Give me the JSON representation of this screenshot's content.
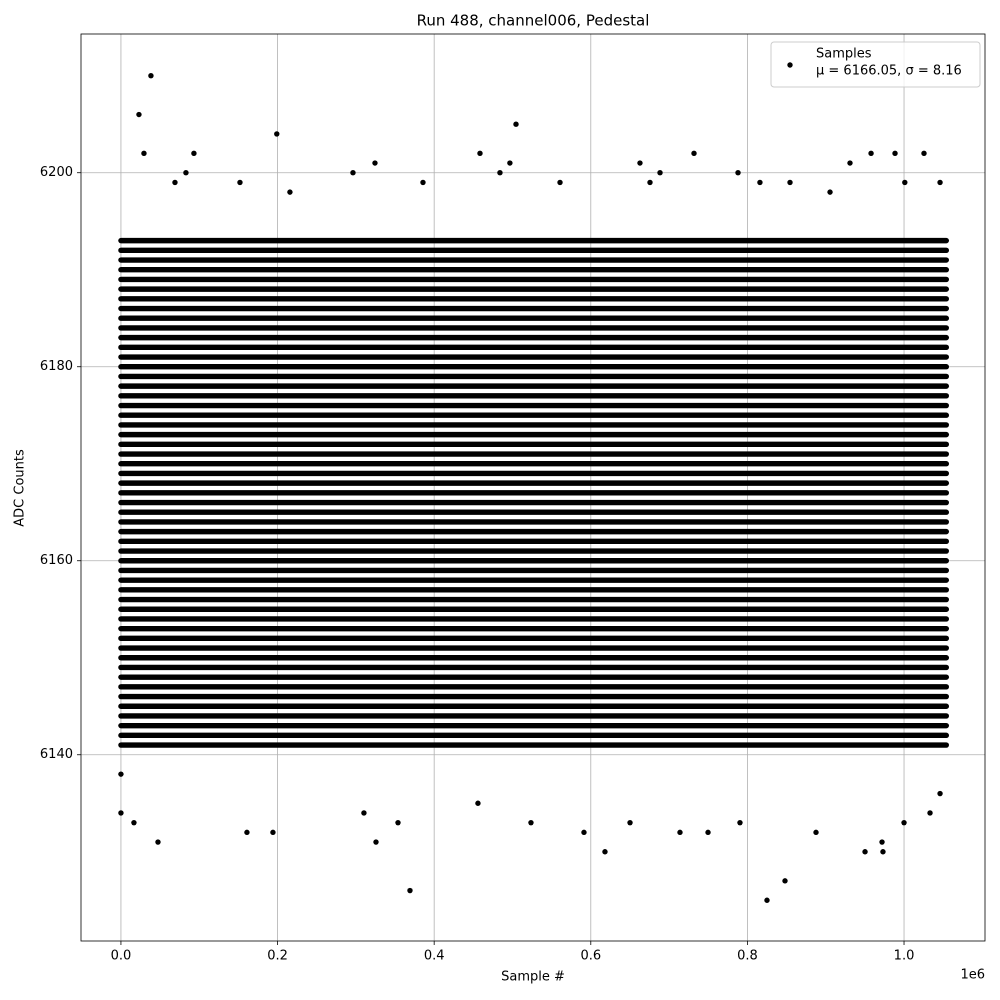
{
  "chart_data": {
    "type": "scatter",
    "title": "Run 488, channel006, Pedestal",
    "xlabel": "Sample #",
    "ylabel": "ADC Counts",
    "x_offset_label": "1e6",
    "xlim": [
      -51000,
      1103400
    ],
    "ylim": [
      6120.8,
      6214.3
    ],
    "xticks": [
      {
        "value": 0,
        "label": "0.0"
      },
      {
        "value": 200000,
        "label": "0.2"
      },
      {
        "value": 400000,
        "label": "0.4"
      },
      {
        "value": 600000,
        "label": "0.6"
      },
      {
        "value": 800000,
        "label": "0.8"
      },
      {
        "value": 1000000,
        "label": "1.0"
      }
    ],
    "yticks": [
      6140,
      6160,
      6180,
      6200
    ],
    "grid": true,
    "legend_position": "upper right",
    "series": [
      {
        "name": "Samples",
        "color": "#000000",
        "annotation": "μ = 6166.05, σ = 8.16",
        "x": [
          23000,
          38300,
          29400,
          199000,
          93200,
          83000,
          504500,
          458500,
          496700,
          324400,
          662800,
          731800,
          931000,
          957900,
          988500,
          1025500,
          788000,
          688400,
          296300,
          484000,
          47300,
          160900,
          194100,
          325700,
          369100,
          618100,
          825000,
          848000,
          971900,
          950200,
          973100,
          749700,
          887600,
          591300,
          0,
          16600,
          310300,
          353800,
          455900,
          523600,
          650100,
          713900,
          790500,
          1000000,
          1033200,
          1046000,
          0,
          69000,
          152000,
          215800,
          385700,
          560700,
          816000,
          854400,
          675600,
          1001000,
          1046000,
          905500
        ],
        "values": [
          6206,
          6210,
          6202,
          6204,
          6202,
          6200,
          6205,
          6202,
          6201,
          6201,
          6201,
          6202,
          6201,
          6202,
          6202,
          6202,
          6200,
          6200,
          6200,
          6200,
          6131,
          6132,
          6132,
          6131,
          6126,
          6130,
          6125,
          6127,
          6131,
          6130,
          6130,
          6132,
          6132,
          6132,
          6134,
          6133,
          6134,
          6133,
          6135,
          6133,
          6133,
          6132,
          6133,
          6133,
          6134,
          6136,
          6138,
          6199,
          6199,
          6198,
          6199,
          6199,
          6199,
          6199,
          6199,
          6199,
          6199,
          6198
        ]
      }
    ],
    "bands": {
      "x_range": [
        0,
        1054000
      ],
      "levels": [
        6141,
        6142,
        6143,
        6144,
        6145,
        6146,
        6147,
        6148,
        6149,
        6150,
        6151,
        6152,
        6153,
        6154,
        6155,
        6156,
        6157,
        6158,
        6159,
        6160,
        6161,
        6162,
        6163,
        6164,
        6165,
        6166,
        6167,
        6168,
        6169,
        6170,
        6171,
        6172,
        6173,
        6174,
        6175,
        6176,
        6177,
        6178,
        6179,
        6180,
        6181,
        6182,
        6183,
        6184,
        6185,
        6186,
        6187,
        6188,
        6189,
        6190,
        6191,
        6192,
        6193
      ]
    }
  }
}
